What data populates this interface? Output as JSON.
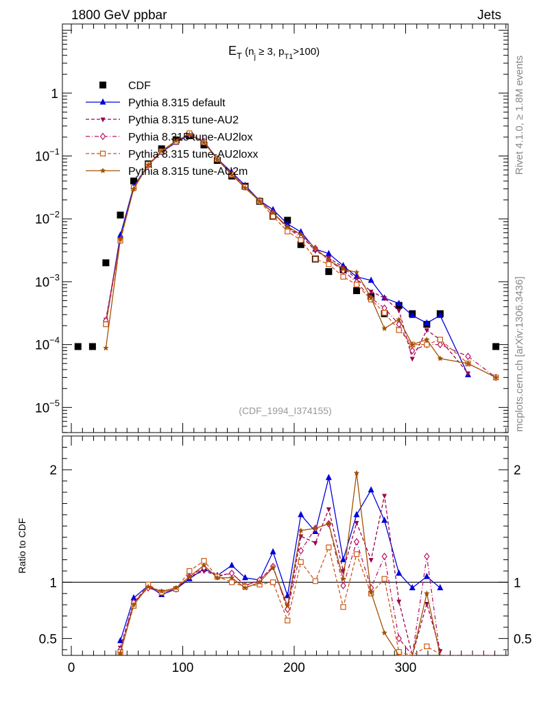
{
  "header": {
    "left": "1800 GeV ppbar",
    "right": "Jets"
  },
  "side_texts": {
    "rivet": "Rivet 4.1.0, ≥ 1.8M events",
    "mcplots": "mcplots.cern.ch [arXiv:1306.3436]"
  },
  "watermark": "(CDF_1994_I374155)",
  "chart_data": [
    {
      "type": "scatter",
      "title": {
        "base": "E",
        "sub": "T",
        "rest1": " (n",
        "sub2": "j",
        "rest2": " ≥ 3, p",
        "sub3": "T1",
        "rest3": ">100)"
      },
      "xlim": [
        -8,
        392
      ],
      "ylim_log10": [
        -5.4,
        1.1
      ],
      "yscale": "log",
      "yticks": [
        {
          "exp": 0,
          "label": "1"
        },
        {
          "exp": -1,
          "label": "10",
          "sup": "−1"
        },
        {
          "exp": -2,
          "label": "10",
          "sup": "−2"
        },
        {
          "exp": -3,
          "label": "10",
          "sup": "−3"
        },
        {
          "exp": -4,
          "label": "10",
          "sup": "−4"
        },
        {
          "exp": -5,
          "label": "10",
          "sup": "−5"
        }
      ],
      "legend_position": "top-left",
      "series": [
        {
          "name": "CDF",
          "color": "#000000",
          "marker": "square",
          "line": "none",
          "x": [
            6,
            19,
            31,
            44,
            56,
            69,
            81,
            94,
            106,
            119,
            131,
            144,
            156,
            169,
            181,
            194,
            206,
            219,
            231,
            244,
            256,
            269,
            281,
            294,
            306,
            319,
            331,
            381
          ],
          "y": [
            9.3e-05,
            9.3e-05,
            0.002,
            0.0115,
            0.04,
            0.075,
            0.13,
            0.18,
            0.21,
            0.15,
            0.085,
            0.048,
            0.033,
            0.019,
            0.011,
            0.0095,
            0.0039,
            0.0023,
            0.00145,
            0.00155,
            0.00072,
            0.00058,
            0.00031,
            0.00042,
            0.00031,
            0.00021,
            0.00031,
            9.3e-05
          ]
        },
        {
          "name": "Pythia 8.315 default",
          "color": "#0000dd",
          "marker": "triangle-up",
          "line": "solid",
          "x": [
            31,
            44,
            56,
            69,
            81,
            94,
            106,
            119,
            131,
            144,
            156,
            169,
            181,
            194,
            206,
            219,
            231,
            244,
            256,
            269,
            281,
            294,
            306,
            319,
            331,
            356
          ],
          "y": [
            0.00022,
            0.0055,
            0.033,
            0.072,
            0.115,
            0.165,
            0.215,
            0.17,
            0.09,
            0.055,
            0.034,
            0.0195,
            0.014,
            0.0083,
            0.0062,
            0.0033,
            0.0028,
            0.0018,
            0.0012,
            0.00105,
            0.00055,
            0.00045,
            0.00029,
            0.00022,
            0.00029,
            3.3e-05
          ]
        },
        {
          "name": "Pythia 8.315 tune-AU2",
          "color": "#99004d",
          "marker": "triangle-down",
          "line": "dashed",
          "x": [
            31,
            44,
            56,
            69,
            81,
            94,
            106,
            119,
            131,
            144,
            156,
            169,
            181,
            194,
            206,
            219,
            231,
            244,
            256,
            269,
            281,
            294,
            306,
            319,
            331,
            356
          ],
          "y": [
            0.00025,
            0.0048,
            0.031,
            0.072,
            0.118,
            0.17,
            0.22,
            0.165,
            0.09,
            0.052,
            0.032,
            0.0195,
            0.0125,
            0.0072,
            0.0055,
            0.0031,
            0.0024,
            0.0017,
            0.0011,
            0.0007,
            0.00055,
            0.00035,
            6e-05,
            0.00017,
            0.00012,
            3.5e-05
          ]
        },
        {
          "name": "Pythia 8.315 tune-AU2lox",
          "color": "#bb1166",
          "marker": "diamond-open",
          "line": "dashdot",
          "x": [
            31,
            44,
            56,
            69,
            81,
            94,
            106,
            119,
            131,
            144,
            156,
            169,
            181,
            194,
            206,
            219,
            231,
            244,
            256,
            269,
            281,
            294,
            306,
            319,
            331,
            356,
            381
          ],
          "y": [
            0.00024,
            0.0046,
            0.031,
            0.071,
            0.118,
            0.17,
            0.22,
            0.17,
            0.089,
            0.052,
            0.032,
            0.0195,
            0.0125,
            0.0072,
            0.005,
            0.0034,
            0.0022,
            0.0015,
            0.00098,
            0.00055,
            0.00038,
            0.00021,
            8e-05,
            0.0001,
            0.0001,
            6.5e-05,
            3e-05
          ]
        },
        {
          "name": "Pythia 8.315 tune-AU2loxx",
          "color": "#cc5511",
          "marker": "square-open",
          "line": "dashed",
          "x": [
            31,
            44,
            56,
            69,
            81,
            94,
            106,
            119,
            131,
            144,
            156,
            169,
            181,
            194,
            206,
            219,
            231,
            244,
            256,
            269,
            281,
            294,
            306,
            319,
            331,
            356,
            381
          ],
          "y": [
            0.00021,
            0.0045,
            0.031,
            0.074,
            0.118,
            0.17,
            0.23,
            0.165,
            0.089,
            0.05,
            0.032,
            0.019,
            0.011,
            0.0063,
            0.0046,
            0.0023,
            0.0019,
            0.0012,
            0.0009,
            0.00052,
            0.00032,
            0.00017,
            0.0001,
            0.0001,
            0.00012,
            5e-05,
            3e-05
          ]
        },
        {
          "name": "Pythia 8.315 tune-AU2m",
          "color": "#a05000",
          "marker": "star",
          "line": "solid",
          "x": [
            31,
            44,
            56,
            69,
            81,
            94,
            106,
            119,
            131,
            144,
            156,
            169,
            181,
            194,
            206,
            219,
            231,
            244,
            256,
            269,
            281,
            294,
            306,
            319,
            331,
            356,
            381
          ],
          "y": [
            8.8e-05,
            0.0047,
            0.03,
            0.072,
            0.12,
            0.175,
            0.22,
            0.165,
            0.088,
            0.05,
            0.031,
            0.019,
            0.0125,
            0.0075,
            0.0057,
            0.0034,
            0.0022,
            0.0016,
            0.00141,
            0.00055,
            0.00018,
            0.00025,
            0.0001,
            0.00012,
            6e-05,
            5e-05,
            3e-05
          ]
        }
      ]
    },
    {
      "type": "line",
      "ylabel": "Ratio to CDF",
      "xlim": [
        -8,
        392
      ],
      "ylim": [
        0.35,
        2.3
      ],
      "yticks": [
        0.5,
        1,
        2
      ],
      "xticks": [
        0,
        100,
        200,
        300
      ],
      "reference_line": 1,
      "series": [
        {
          "name": "Pythia 8.315 default",
          "x": [
            44,
            56,
            69,
            81,
            94,
            106,
            119,
            131,
            144,
            156,
            169,
            181,
            194,
            206,
            219,
            231,
            244,
            256,
            269,
            281,
            294,
            306,
            319,
            331
          ],
          "y": [
            0.48,
            0.86,
            0.97,
            0.89,
            0.94,
            1.03,
            1.12,
            1.06,
            1.15,
            1.04,
            1.02,
            1.27,
            0.88,
            1.6,
            1.45,
            1.93,
            1.2,
            1.6,
            1.82,
            1.55,
            1.08,
            0.95,
            1.05,
            0.95
          ]
        },
        {
          "name": "Pythia 8.315 tune-AU2",
          "x": [
            44,
            56,
            69,
            81,
            94,
            106,
            119,
            131,
            144,
            156,
            169,
            181,
            194,
            206,
            219,
            231,
            244,
            256,
            269,
            281,
            294,
            306,
            319,
            331
          ],
          "y": [
            0.42,
            0.82,
            0.97,
            0.91,
            0.94,
            1.05,
            1.1,
            1.06,
            1.08,
            0.97,
            1.02,
            1.14,
            0.76,
            1.41,
            1.35,
            1.65,
            1.1,
            1.53,
            1.2,
            1.77,
            0.83,
            0.19,
            0.81,
            0.39
          ]
        },
        {
          "name": "Pythia 8.315 tune-AU2lox",
          "x": [
            44,
            56,
            69,
            81,
            94,
            106,
            119,
            131,
            144,
            156,
            169,
            181,
            194,
            206,
            219,
            231,
            244,
            256,
            269,
            281,
            294,
            306,
            319,
            331,
            380
          ],
          "y": [
            0.4,
            0.82,
            0.95,
            0.91,
            0.94,
            1.05,
            1.13,
            1.05,
            1.08,
            0.97,
            1.02,
            1.14,
            0.76,
            1.28,
            1.48,
            1.52,
            0.97,
            1.36,
            0.95,
            1.23,
            0.5,
            0.26,
            1.23,
            0.32,
            0.33
          ]
        },
        {
          "name": "Pythia 8.315 tune-AU2loxx",
          "x": [
            44,
            56,
            69,
            81,
            94,
            106,
            119,
            131,
            144,
            156,
            169,
            181,
            194,
            206,
            219,
            231,
            244,
            256,
            269,
            281,
            294,
            306,
            319,
            331
          ],
          "y": [
            0.38,
            0.79,
            0.98,
            0.91,
            0.94,
            1.1,
            1.19,
            1.05,
            1.0,
            0.96,
            0.98,
            1.0,
            0.66,
            1.18,
            1.01,
            1.31,
            0.78,
            1.25,
            0.9,
            1.03,
            0.38,
            0.29,
            0.43,
            0.36
          ]
        },
        {
          "name": "Pythia 8.315 tune-AU2m",
          "x": [
            44,
            56,
            69,
            81,
            94,
            106,
            119,
            131,
            144,
            156,
            169,
            181,
            194,
            206,
            219,
            231,
            244,
            256,
            269,
            281,
            294,
            306,
            319,
            331
          ],
          "y": [
            0.37,
            0.8,
            0.96,
            0.92,
            0.95,
            1.05,
            1.15,
            1.04,
            1.04,
            0.95,
            1.0,
            1.13,
            0.79,
            1.46,
            1.48,
            1.52,
            1.03,
            1.97,
            0.91,
            0.55,
            0.33,
            0.28,
            0.9,
            0.25
          ]
        }
      ]
    }
  ]
}
